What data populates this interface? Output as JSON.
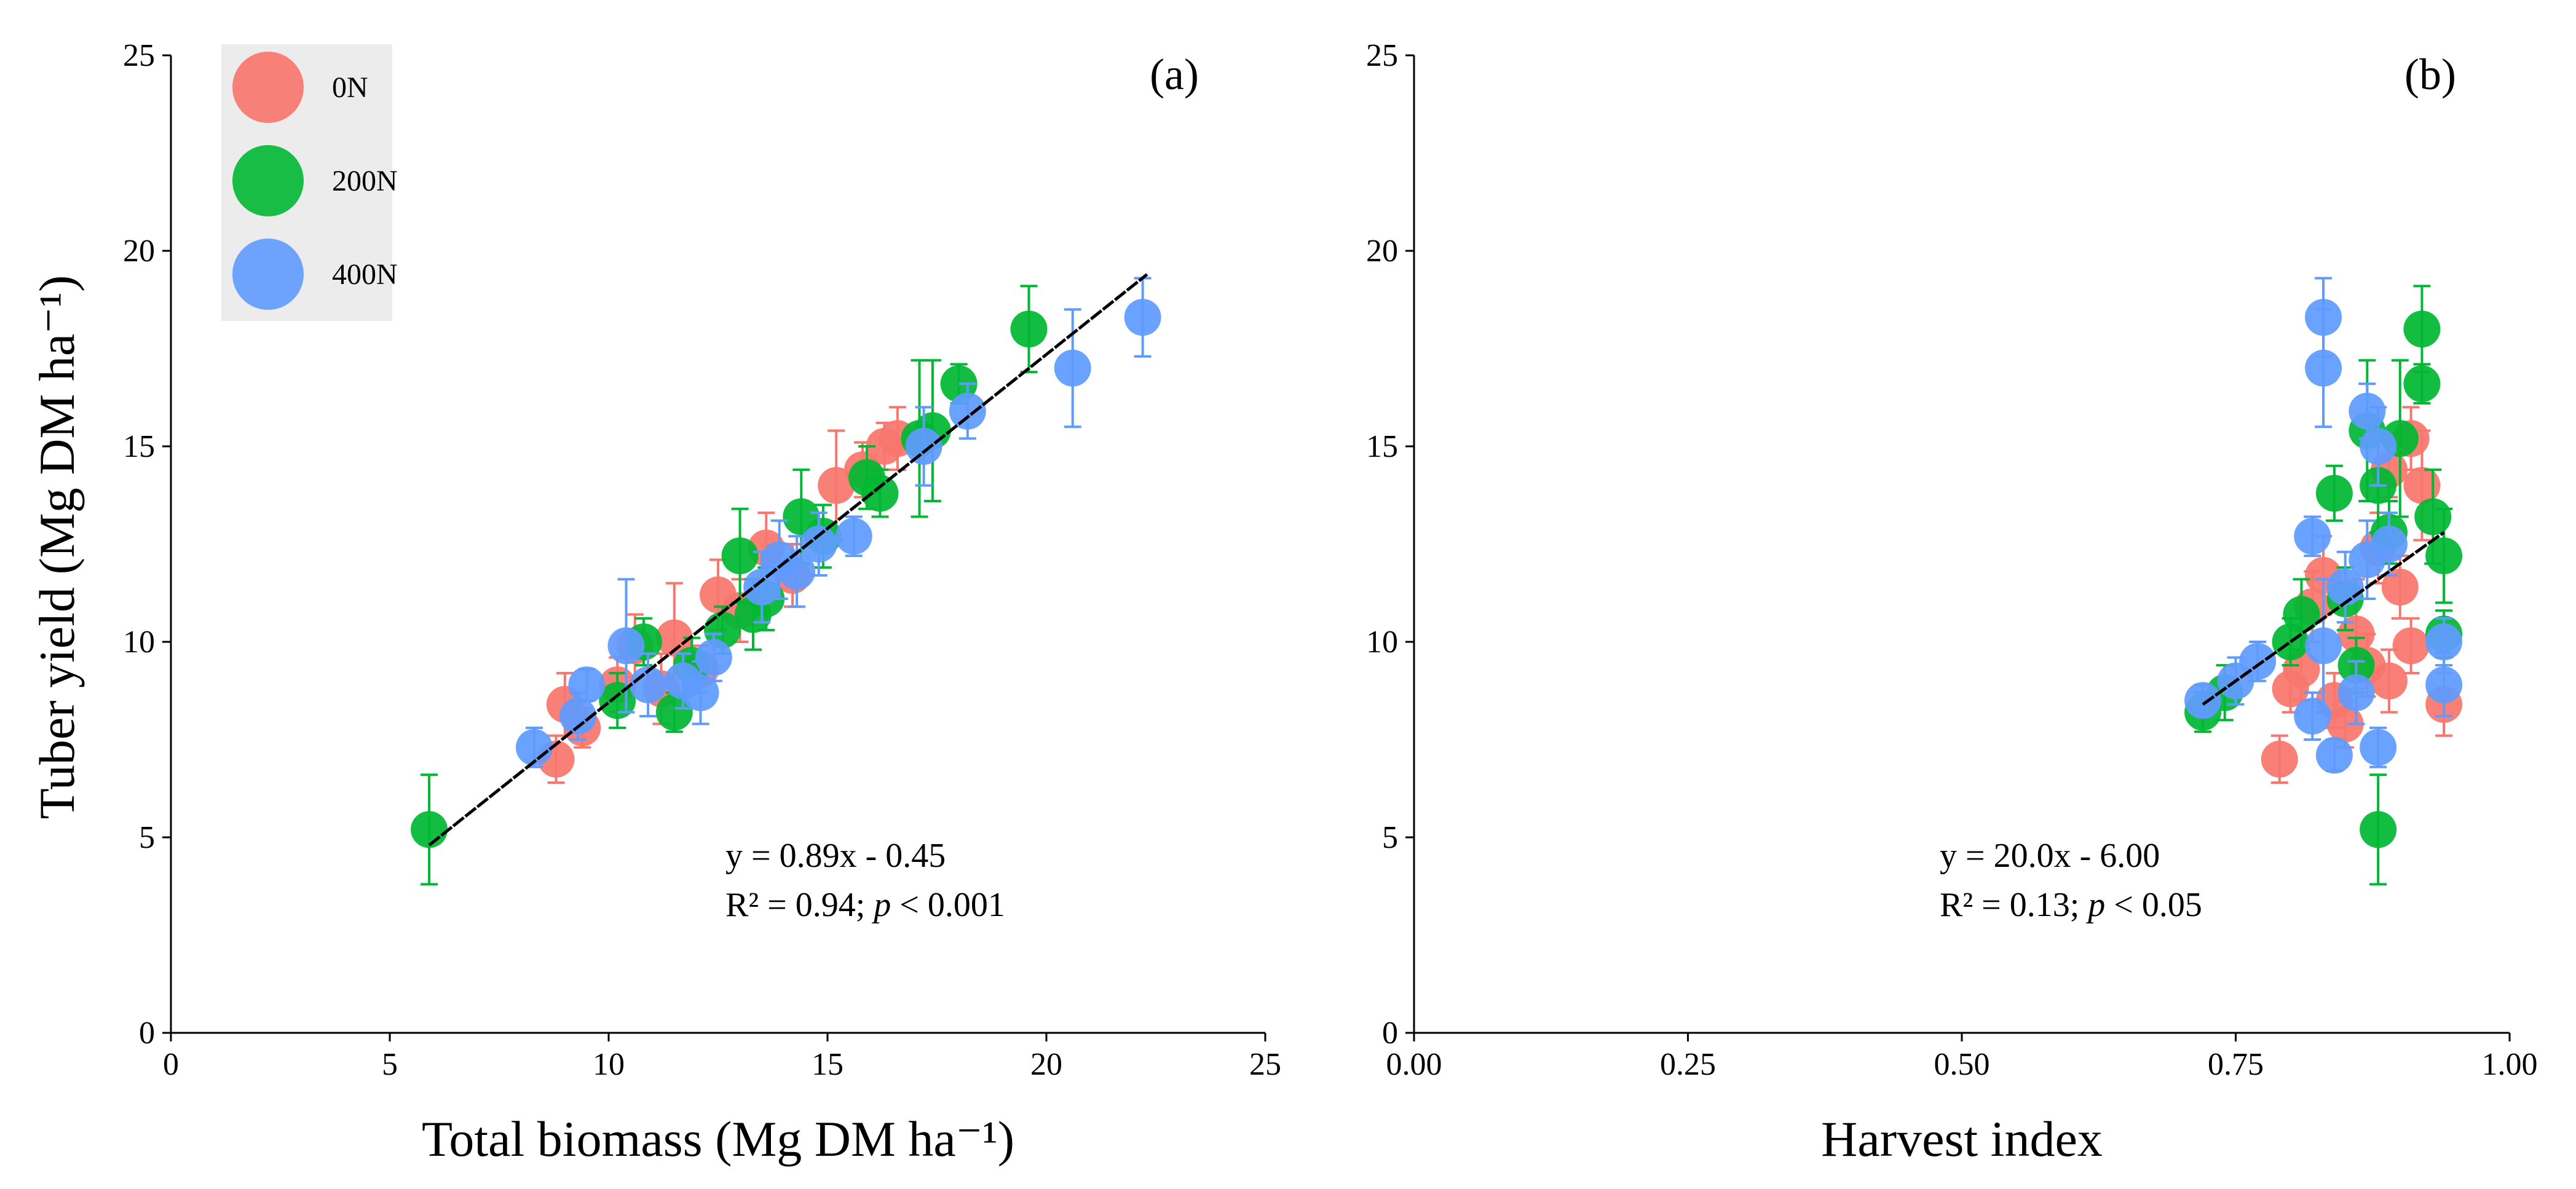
{
  "ylabel": "Tuber yield (Mg DM ha⁻¹)",
  "legend": [
    {
      "label": "0N",
      "color": "#f8766d"
    },
    {
      "label": "200N",
      "color": "#00b833"
    },
    {
      "label": "400N",
      "color": "#5f9bff"
    }
  ],
  "chart_data": [
    {
      "type": "scatter",
      "panel": "(a)",
      "xlabel": "Total biomass (Mg DM ha⁻¹)",
      "ylabel": "Tuber yield (Mg DM ha⁻¹)",
      "xlim": [
        0,
        25
      ],
      "ylim": [
        0,
        25
      ],
      "xticks": [
        "0",
        "5",
        "10",
        "15",
        "20",
        "25"
      ],
      "yticks": [
        "0",
        "5",
        "10",
        "15",
        "20",
        "25"
      ],
      "equation": "y = 0.89x - 0.45",
      "stats_prefix": "R² = 0.94; ",
      "stats_p": "p",
      "stats_suffix": " < 0.001",
      "fit": {
        "slope": 0.89,
        "intercept": -0.45,
        "x_range": [
          5.9,
          22.3
        ]
      },
      "series": [
        {
          "name": "0N",
          "color": "#f8766d",
          "points": [
            {
              "x": 8.8,
              "y": 7.0,
              "err": 0.6
            },
            {
              "x": 9.0,
              "y": 8.4,
              "err": 0.8
            },
            {
              "x": 9.4,
              "y": 7.8,
              "err": 0.5
            },
            {
              "x": 10.2,
              "y": 8.9,
              "err": 0.7
            },
            {
              "x": 10.6,
              "y": 9.9,
              "err": 0.8
            },
            {
              "x": 11.2,
              "y": 8.8,
              "err": 0.9
            },
            {
              "x": 11.5,
              "y": 10.1,
              "err": 1.4
            },
            {
              "x": 12.1,
              "y": 9.3,
              "err": 0.6
            },
            {
              "x": 12.5,
              "y": 11.2,
              "err": 0.9
            },
            {
              "x": 13.0,
              "y": 10.8,
              "err": 0.8
            },
            {
              "x": 13.6,
              "y": 12.4,
              "err": 0.9
            },
            {
              "x": 14.2,
              "y": 11.7,
              "err": 0.8
            },
            {
              "x": 15.2,
              "y": 14.0,
              "err": 1.4
            },
            {
              "x": 15.8,
              "y": 14.4,
              "err": 0.7
            },
            {
              "x": 16.3,
              "y": 15.0,
              "err": 0.6
            },
            {
              "x": 16.6,
              "y": 15.2,
              "err": 0.8
            }
          ]
        },
        {
          "name": "200N",
          "color": "#00b833",
          "points": [
            {
              "x": 5.9,
              "y": 5.2,
              "err": 1.4
            },
            {
              "x": 10.2,
              "y": 8.5,
              "err": 0.7
            },
            {
              "x": 10.8,
              "y": 10.0,
              "err": 0.6
            },
            {
              "x": 11.5,
              "y": 8.2,
              "err": 0.5
            },
            {
              "x": 11.9,
              "y": 9.4,
              "err": 0.7
            },
            {
              "x": 12.6,
              "y": 10.3,
              "err": 0.6
            },
            {
              "x": 13.0,
              "y": 12.2,
              "err": 1.2
            },
            {
              "x": 13.3,
              "y": 10.7,
              "err": 0.9
            },
            {
              "x": 13.6,
              "y": 11.1,
              "err": 0.8
            },
            {
              "x": 14.4,
              "y": 13.2,
              "err": 1.2
            },
            {
              "x": 14.9,
              "y": 12.7,
              "err": 0.8
            },
            {
              "x": 15.9,
              "y": 14.2,
              "err": 0.8
            },
            {
              "x": 16.2,
              "y": 13.8,
              "err": 0.6
            },
            {
              "x": 17.1,
              "y": 15.2,
              "err": 2.0
            },
            {
              "x": 17.4,
              "y": 15.4,
              "err": 1.8
            },
            {
              "x": 18.0,
              "y": 16.6,
              "err": 0.5
            },
            {
              "x": 19.6,
              "y": 18.0,
              "err": 1.1
            }
          ]
        },
        {
          "name": "400N",
          "color": "#5f9bff",
          "points": [
            {
              "x": 8.3,
              "y": 7.3,
              "err": 0.5
            },
            {
              "x": 9.3,
              "y": 8.1,
              "err": 0.6
            },
            {
              "x": 9.5,
              "y": 8.9,
              "err": 0.4
            },
            {
              "x": 10.4,
              "y": 9.9,
              "err": 1.7
            },
            {
              "x": 10.9,
              "y": 8.9,
              "err": 0.8
            },
            {
              "x": 11.7,
              "y": 9.0,
              "err": 0.7
            },
            {
              "x": 12.1,
              "y": 8.7,
              "err": 0.8
            },
            {
              "x": 12.4,
              "y": 9.6,
              "err": 0.6
            },
            {
              "x": 13.5,
              "y": 11.4,
              "err": 0.9
            },
            {
              "x": 13.9,
              "y": 12.1,
              "err": 1.0
            },
            {
              "x": 14.3,
              "y": 11.8,
              "err": 0.9
            },
            {
              "x": 14.8,
              "y": 12.5,
              "err": 0.8
            },
            {
              "x": 15.6,
              "y": 12.7,
              "err": 0.5
            },
            {
              "x": 17.2,
              "y": 15.0,
              "err": 1.0
            },
            {
              "x": 18.2,
              "y": 15.9,
              "err": 0.7
            },
            {
              "x": 20.6,
              "y": 17.0,
              "err": 1.5
            },
            {
              "x": 22.2,
              "y": 18.3,
              "err": 1.0
            }
          ]
        }
      ]
    },
    {
      "type": "scatter",
      "panel": "(b)",
      "xlabel": "Harvest index",
      "ylabel": "Tuber yield (Mg DM ha⁻¹)",
      "xlim": [
        0,
        1
      ],
      "ylim": [
        0,
        25
      ],
      "xticks": [
        "0.00",
        "0.25",
        "0.50",
        "0.75",
        "1.00"
      ],
      "yticks": [
        "0",
        "5",
        "10",
        "15",
        "20",
        "25"
      ],
      "equation": "y = 20.0x - 6.00",
      "stats_prefix": "R² = 0.13; ",
      "stats_p": "p",
      "stats_suffix": " < 0.05",
      "fit": {
        "slope": 20.0,
        "intercept": -6.0,
        "x_range": [
          0.72,
          0.94
        ]
      },
      "series": [
        {
          "name": "0N",
          "color": "#f8766d",
          "points": [
            {
              "x": 0.79,
              "y": 7.0,
              "err": 0.6
            },
            {
              "x": 0.8,
              "y": 8.8,
              "err": 0.6
            },
            {
              "x": 0.81,
              "y": 9.3,
              "err": 0.8
            },
            {
              "x": 0.82,
              "y": 10.9,
              "err": 0.9
            },
            {
              "x": 0.83,
              "y": 11.7,
              "err": 1.0
            },
            {
              "x": 0.84,
              "y": 8.5,
              "err": 0.7
            },
            {
              "x": 0.85,
              "y": 7.9,
              "err": 0.6
            },
            {
              "x": 0.86,
              "y": 10.2,
              "err": 1.4
            },
            {
              "x": 0.87,
              "y": 9.4,
              "err": 0.8
            },
            {
              "x": 0.88,
              "y": 12.4,
              "err": 0.9
            },
            {
              "x": 0.89,
              "y": 9.0,
              "err": 0.8
            },
            {
              "x": 0.9,
              "y": 11.4,
              "err": 0.8
            },
            {
              "x": 0.91,
              "y": 15.2,
              "err": 0.8
            },
            {
              "x": 0.92,
              "y": 14.0,
              "err": 1.4
            },
            {
              "x": 0.91,
              "y": 9.9,
              "err": 0.7
            },
            {
              "x": 0.94,
              "y": 8.4,
              "err": 0.8
            },
            {
              "x": 0.89,
              "y": 14.4,
              "err": 0.7
            }
          ]
        },
        {
          "name": "200N",
          "color": "#00b833",
          "points": [
            {
              "x": 0.72,
              "y": 8.2,
              "err": 0.5
            },
            {
              "x": 0.74,
              "y": 8.7,
              "err": 0.7
            },
            {
              "x": 0.8,
              "y": 10.0,
              "err": 0.6
            },
            {
              "x": 0.81,
              "y": 10.7,
              "err": 0.9
            },
            {
              "x": 0.84,
              "y": 13.8,
              "err": 0.7
            },
            {
              "x": 0.85,
              "y": 11.1,
              "err": 0.8
            },
            {
              "x": 0.86,
              "y": 9.4,
              "err": 0.7
            },
            {
              "x": 0.87,
              "y": 15.4,
              "err": 1.8
            },
            {
              "x": 0.88,
              "y": 5.2,
              "err": 1.4
            },
            {
              "x": 0.88,
              "y": 14.0,
              "err": 1.2
            },
            {
              "x": 0.89,
              "y": 12.8,
              "err": 0.8
            },
            {
              "x": 0.9,
              "y": 15.2,
              "err": 2.0
            },
            {
              "x": 0.92,
              "y": 18.0,
              "err": 1.1
            },
            {
              "x": 0.92,
              "y": 16.6,
              "err": 0.5
            },
            {
              "x": 0.93,
              "y": 13.2,
              "err": 1.2
            },
            {
              "x": 0.94,
              "y": 12.2,
              "err": 1.2
            },
            {
              "x": 0.94,
              "y": 10.2,
              "err": 0.6
            }
          ]
        },
        {
          "name": "400N",
          "color": "#5f9bff",
          "points": [
            {
              "x": 0.72,
              "y": 8.5,
              "err": 0.4
            },
            {
              "x": 0.75,
              "y": 9.0,
              "err": 0.6
            },
            {
              "x": 0.77,
              "y": 9.5,
              "err": 0.5
            },
            {
              "x": 0.82,
              "y": 12.7,
              "err": 0.5
            },
            {
              "x": 0.82,
              "y": 8.1,
              "err": 0.6
            },
            {
              "x": 0.83,
              "y": 18.3,
              "err": 1.0
            },
            {
              "x": 0.83,
              "y": 17.0,
              "err": 1.5
            },
            {
              "x": 0.83,
              "y": 9.9,
              "err": 1.7
            },
            {
              "x": 0.84,
              "y": 7.1,
              "err": 0.4
            },
            {
              "x": 0.85,
              "y": 11.4,
              "err": 0.9
            },
            {
              "x": 0.86,
              "y": 8.7,
              "err": 0.8
            },
            {
              "x": 0.87,
              "y": 12.1,
              "err": 1.0
            },
            {
              "x": 0.87,
              "y": 15.9,
              "err": 0.7
            },
            {
              "x": 0.88,
              "y": 7.3,
              "err": 0.5
            },
            {
              "x": 0.88,
              "y": 15.0,
              "err": 1.0
            },
            {
              "x": 0.89,
              "y": 12.5,
              "err": 0.8
            },
            {
              "x": 0.94,
              "y": 8.9,
              "err": 0.8
            },
            {
              "x": 0.94,
              "y": 10.0,
              "err": 0.6
            }
          ]
        }
      ]
    }
  ]
}
